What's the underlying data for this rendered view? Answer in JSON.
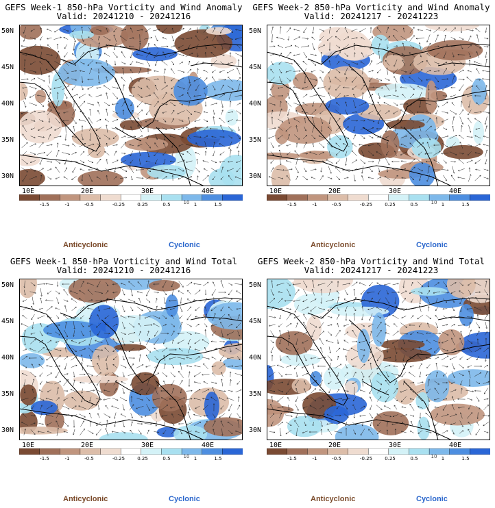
{
  "colorbar": {
    "labels": [
      "-1.5",
      "-1",
      "-0.5",
      "-0.25",
      "0.25",
      "0.5",
      "1",
      "1.5"
    ],
    "extra_mark": "10",
    "colors": [
      "#7a4a33",
      "#a0705a",
      "#c0957e",
      "#dcbda9",
      "#efdcd0",
      "#ffffff",
      "#d4f2f7",
      "#a9e0f0",
      "#7db8ea",
      "#4d8ee0",
      "#2a66d6"
    ]
  },
  "legend": {
    "anticyclonic": "Anticyclonic",
    "cyclonic": "Cyclonic",
    "anti_color": "#7a4a2a",
    "cyc_color": "#2a66cc"
  },
  "axes": {
    "lat_labels": [
      "50N",
      "45N",
      "40N",
      "35N",
      "30N"
    ],
    "lon_labels": [
      "10E",
      "20E",
      "30E",
      "40E"
    ]
  },
  "panels": [
    {
      "title_line1": "GEFS Week-1 850-hPa Vorticity and Wind Anomaly",
      "title_line2": "Valid: 20241210 - 20241216",
      "blue_bias": 0.35
    },
    {
      "title_line1": "GEFS Week-2 850-hPa Vorticity and Wind Anomaly",
      "title_line2": "Valid: 20241217 - 20241223",
      "blue_bias": 0.25
    },
    {
      "title_line1": "GEFS Week-1 850-hPa Vorticity and Wind Total",
      "title_line2": "Valid: 20241210 - 20241216",
      "blue_bias": 0.55
    },
    {
      "title_line1": "GEFS Week-2 850-hPa Vorticity and Wind Total",
      "title_line2": "Valid: 20241217 - 20241223",
      "blue_bias": 0.55
    }
  ]
}
